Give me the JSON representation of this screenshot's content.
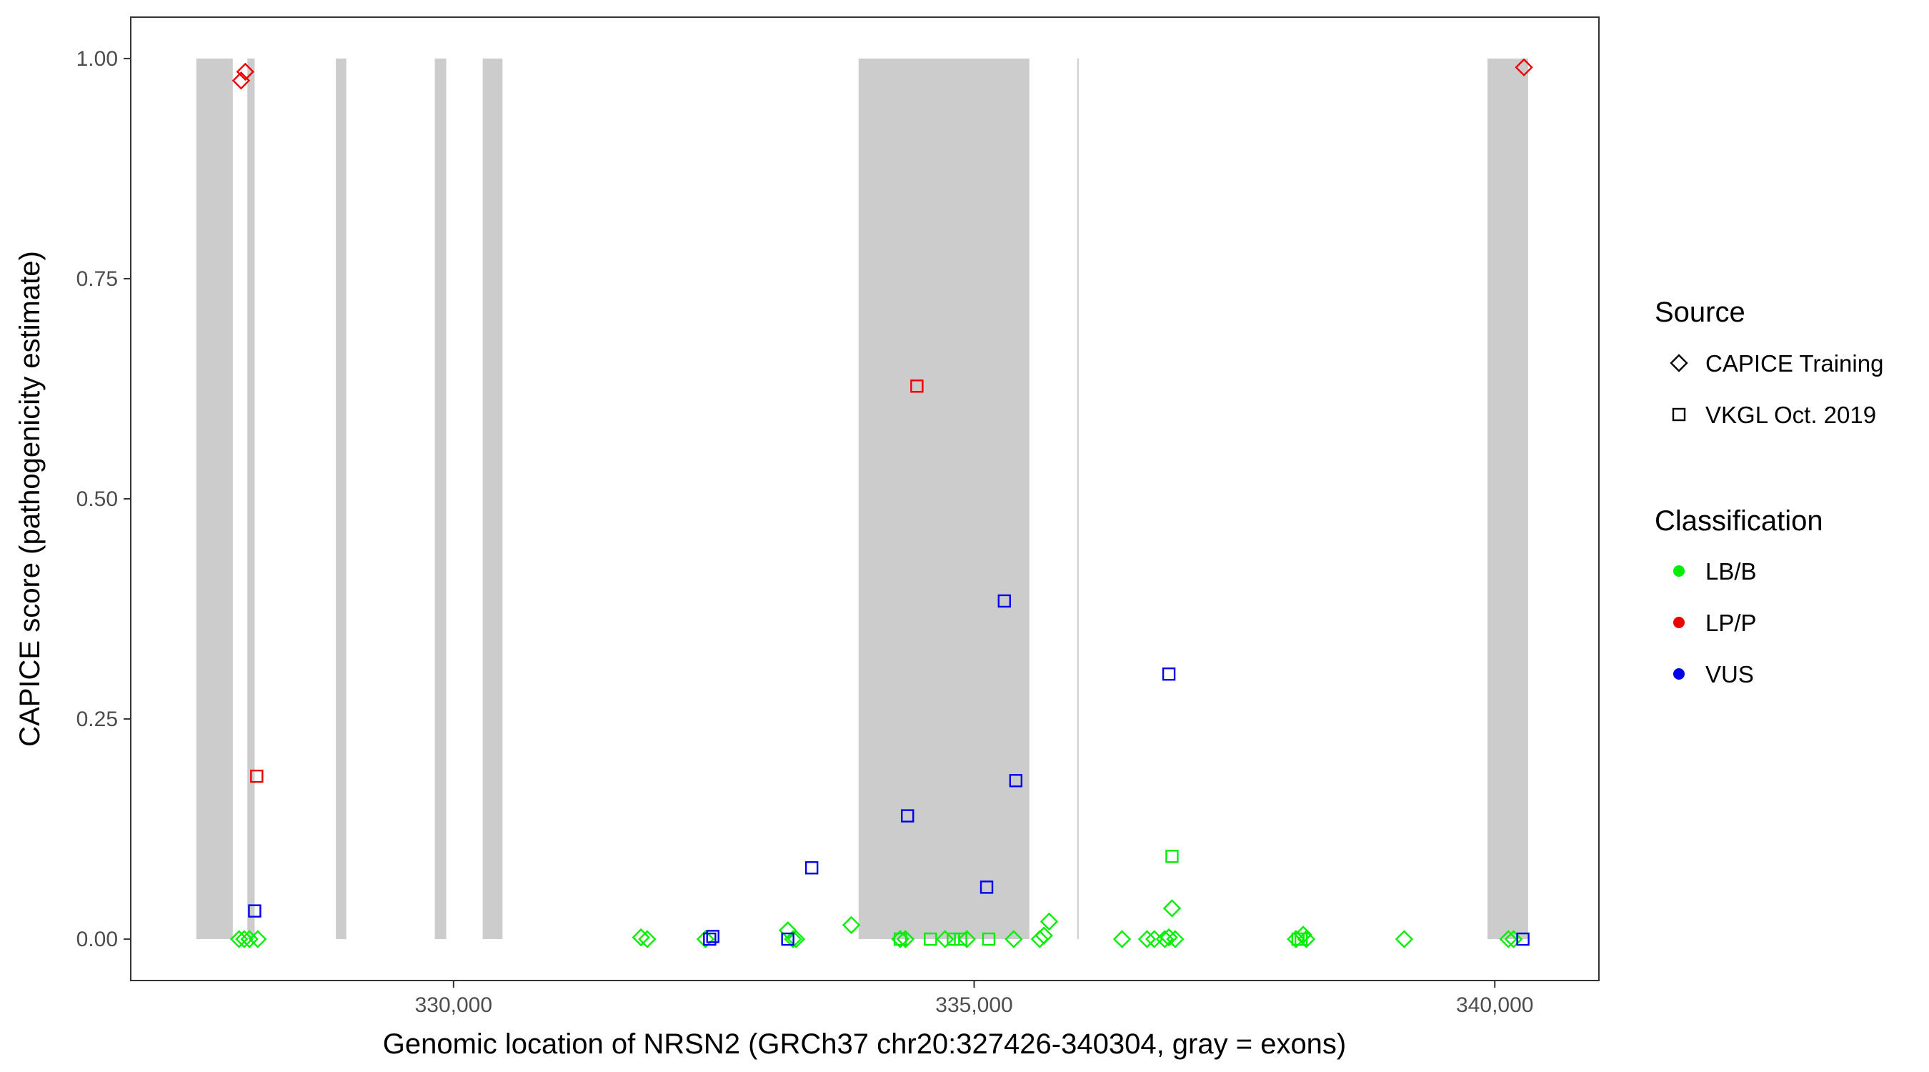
{
  "chart_data": {
    "type": "scatter",
    "xlabel": "Genomic location of NRSN2 (GRCh37 chr20:327426-340304, gray = exons)",
    "ylabel": "CAPICE score (pathogenicity estimate)",
    "xlim": [
      326900,
      341000
    ],
    "ylim": [
      -0.047,
      1.047
    ],
    "x_ticks": [
      330000,
      335000,
      340000
    ],
    "x_tick_labels": [
      "330,000",
      "335,000",
      "340,000"
    ],
    "y_ticks": [
      0,
      0.25,
      0.5,
      0.75,
      1.0
    ],
    "y_tick_labels": [
      "0.00",
      "0.25",
      "0.50",
      "0.75",
      "1.00"
    ],
    "grid": false,
    "exons": [
      {
        "start": 327530,
        "end": 327880
      },
      {
        "start": 328020,
        "end": 328090
      },
      {
        "start": 328870,
        "end": 328970
      },
      {
        "start": 329820,
        "end": 329930
      },
      {
        "start": 330280,
        "end": 330470
      },
      {
        "start": 333890,
        "end": 335530
      },
      {
        "start": 335990,
        "end": 336000
      },
      {
        "start": 339930,
        "end": 340320
      }
    ],
    "legend": {
      "placement": "right",
      "source_title": "Source",
      "source_entries": [
        {
          "label": "CAPICE Training",
          "shape": "diamond"
        },
        {
          "label": "VKGL Oct. 2019",
          "shape": "square"
        }
      ],
      "class_title": "Classification",
      "class_entries": [
        {
          "label": "LB/B",
          "color": "#00ee00"
        },
        {
          "label": "LP/P",
          "color": "#ee0000"
        },
        {
          "label": "VUS",
          "color": "#0000ee"
        }
      ]
    },
    "series": [
      {
        "name": "CAPICE Training",
        "shape": "diamond",
        "points": [
          {
            "x": 327960,
            "y": 0.975,
            "c": "LP/P"
          },
          {
            "x": 328000,
            "y": 0.985,
            "c": "LP/P"
          },
          {
            "x": 340280,
            "y": 0.99,
            "c": "LP/P"
          },
          {
            "x": 327940,
            "y": 0.0,
            "c": "LB/B"
          },
          {
            "x": 327990,
            "y": 0.0,
            "c": "LB/B"
          },
          {
            "x": 328040,
            "y": 0.0,
            "c": "LB/B"
          },
          {
            "x": 328120,
            "y": 0.0,
            "c": "LB/B"
          },
          {
            "x": 331800,
            "y": 0.002,
            "c": "LB/B"
          },
          {
            "x": 331860,
            "y": 0.0,
            "c": "LB/B"
          },
          {
            "x": 332420,
            "y": 0.0,
            "c": "LB/B"
          },
          {
            "x": 333210,
            "y": 0.01,
            "c": "LB/B"
          },
          {
            "x": 333260,
            "y": 0.0,
            "c": "LB/B"
          },
          {
            "x": 333290,
            "y": 0.0,
            "c": "LB/B"
          },
          {
            "x": 333820,
            "y": 0.016,
            "c": "LB/B"
          },
          {
            "x": 334290,
            "y": 0.0,
            "c": "LB/B"
          },
          {
            "x": 334340,
            "y": 0.0,
            "c": "LB/B"
          },
          {
            "x": 334720,
            "y": 0.0,
            "c": "LB/B"
          },
          {
            "x": 334930,
            "y": 0.0,
            "c": "LB/B"
          },
          {
            "x": 335380,
            "y": 0.0,
            "c": "LB/B"
          },
          {
            "x": 335630,
            "y": 0.0,
            "c": "LB/B"
          },
          {
            "x": 335670,
            "y": 0.004,
            "c": "LB/B"
          },
          {
            "x": 335720,
            "y": 0.02,
            "c": "LB/B"
          },
          {
            "x": 336420,
            "y": 0.0,
            "c": "LB/B"
          },
          {
            "x": 336660,
            "y": 0.0,
            "c": "LB/B"
          },
          {
            "x": 336730,
            "y": 0.0,
            "c": "LB/B"
          },
          {
            "x": 336830,
            "y": 0.0,
            "c": "LB/B"
          },
          {
            "x": 336870,
            "y": 0.002,
            "c": "LB/B"
          },
          {
            "x": 336900,
            "y": 0.035,
            "c": "LB/B"
          },
          {
            "x": 336930,
            "y": 0.0,
            "c": "LB/B"
          },
          {
            "x": 338090,
            "y": 0.0,
            "c": "LB/B"
          },
          {
            "x": 338160,
            "y": 0.005,
            "c": "LB/B"
          },
          {
            "x": 338190,
            "y": 0.0,
            "c": "LB/B"
          },
          {
            "x": 339130,
            "y": 0.0,
            "c": "LB/B"
          },
          {
            "x": 340130,
            "y": 0.0,
            "c": "LB/B"
          },
          {
            "x": 340180,
            "y": 0.0,
            "c": "LB/B"
          }
        ]
      },
      {
        "name": "VKGL Oct. 2019",
        "shape": "square",
        "points": [
          {
            "x": 328110,
            "y": 0.185,
            "c": "LP/P"
          },
          {
            "x": 334450,
            "y": 0.628,
            "c": "LP/P"
          },
          {
            "x": 328090,
            "y": 0.032,
            "c": "VUS"
          },
          {
            "x": 332460,
            "y": 0.0,
            "c": "VUS"
          },
          {
            "x": 332490,
            "y": 0.003,
            "c": "VUS"
          },
          {
            "x": 333210,
            "y": 0.0,
            "c": "VUS"
          },
          {
            "x": 333440,
            "y": 0.081,
            "c": "VUS"
          },
          {
            "x": 334360,
            "y": 0.14,
            "c": "VUS"
          },
          {
            "x": 335120,
            "y": 0.059,
            "c": "VUS"
          },
          {
            "x": 335290,
            "y": 0.384,
            "c": "VUS"
          },
          {
            "x": 335400,
            "y": 0.18,
            "c": "VUS"
          },
          {
            "x": 336870,
            "y": 0.301,
            "c": "VUS"
          },
          {
            "x": 340270,
            "y": 0.0,
            "c": "VUS"
          },
          {
            "x": 334290,
            "y": 0.0,
            "c": "LB/B"
          },
          {
            "x": 334580,
            "y": 0.0,
            "c": "LB/B"
          },
          {
            "x": 334800,
            "y": 0.0,
            "c": "LB/B"
          },
          {
            "x": 334870,
            "y": 0.0,
            "c": "LB/B"
          },
          {
            "x": 335140,
            "y": 0.0,
            "c": "LB/B"
          },
          {
            "x": 336900,
            "y": 0.094,
            "c": "LB/B"
          },
          {
            "x": 338110,
            "y": 0.0,
            "c": "LB/B"
          },
          {
            "x": 338140,
            "y": 0.0,
            "c": "LB/B"
          }
        ]
      }
    ]
  }
}
